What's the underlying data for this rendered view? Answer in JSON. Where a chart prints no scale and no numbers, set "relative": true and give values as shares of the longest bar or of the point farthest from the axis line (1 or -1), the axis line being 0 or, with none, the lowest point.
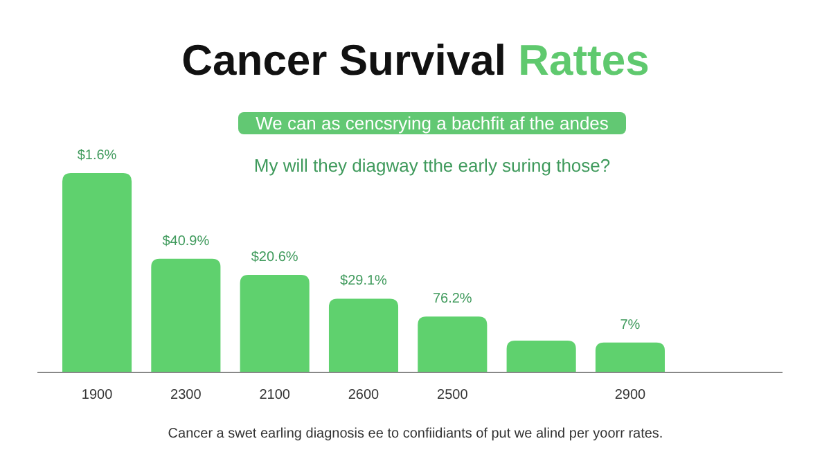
{
  "chart_data": {
    "type": "bar",
    "title": "Cancer Survival Rattes",
    "subtitle": "We can as cencsrying a bachfit af the andes",
    "annotations": [
      "My will they diagway tthe early suring those?",
      "Cancer a swet earling diagnosis ee to confiidiants of put we alind per yoorr rates.",
      {
        "text": "$1.6%",
        "x": "1900",
        "y": 1
      },
      {
        "text": "$40.9%",
        "x": "2300",
        "y": 0.57
      },
      {
        "text": "$20.6%",
        "x": "2100",
        "y": 0.49
      },
      {
        "text": "$29.1%",
        "x": "2600",
        "y": 0.37
      },
      {
        "text": "76.2%",
        "x": "2500",
        "y": 0.28
      },
      {
        "text": "7%",
        "x": "2900",
        "y": 0.15
      }
    ],
    "categories": [
      "1900",
      "2300",
      "2100",
      "2600",
      "2500",
      null,
      "2900"
    ],
    "values": [
      1,
      0.57,
      0.49,
      0.37,
      0.28,
      0.16,
      0.15
    ],
    "relative": true,
    "color": "#5fd16e"
  }
}
